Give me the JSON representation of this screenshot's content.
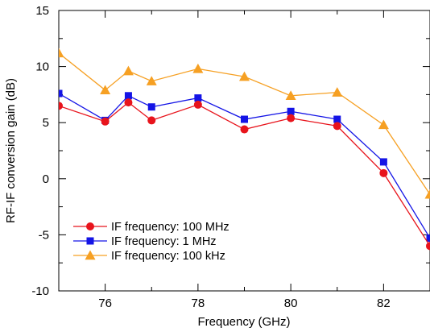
{
  "chart_data": {
    "type": "line",
    "title": "",
    "xlabel": "Frequency (GHz)",
    "ylabel": "RF-IF conversion gain (dB)",
    "xlim": [
      75,
      83
    ],
    "ylim": [
      -10,
      15
    ],
    "xticks": [
      76,
      78,
      80,
      82
    ],
    "yticks": [
      -10,
      -5,
      0,
      5,
      10,
      15
    ],
    "grid": false,
    "legend_position": "bottom-left",
    "series": [
      {
        "name": "IF frequency: 100 MHz",
        "color": "#e8141c",
        "marker": "circle",
        "x": [
          75,
          76,
          76.5,
          77,
          78,
          79,
          80,
          81,
          82,
          83
        ],
        "y": [
          6.5,
          5.1,
          6.8,
          5.2,
          6.6,
          4.4,
          5.4,
          4.7,
          0.5,
          -6.0
        ]
      },
      {
        "name": "IF frequency: 1 MHz",
        "color": "#1414e6",
        "marker": "square",
        "x": [
          75,
          76,
          76.5,
          77,
          78,
          79,
          80,
          81,
          82,
          83
        ],
        "y": [
          7.6,
          5.2,
          7.4,
          6.4,
          7.2,
          5.3,
          6.0,
          5.3,
          1.5,
          -5.3
        ]
      },
      {
        "name": "IF frequency: 100 kHz",
        "color": "#f6a023",
        "marker": "triangle",
        "x": [
          75,
          76,
          76.5,
          77,
          78,
          79,
          80,
          81,
          82,
          83
        ],
        "y": [
          11.2,
          7.9,
          9.6,
          8.7,
          9.8,
          9.1,
          7.4,
          7.7,
          4.8,
          -1.4
        ]
      }
    ]
  }
}
